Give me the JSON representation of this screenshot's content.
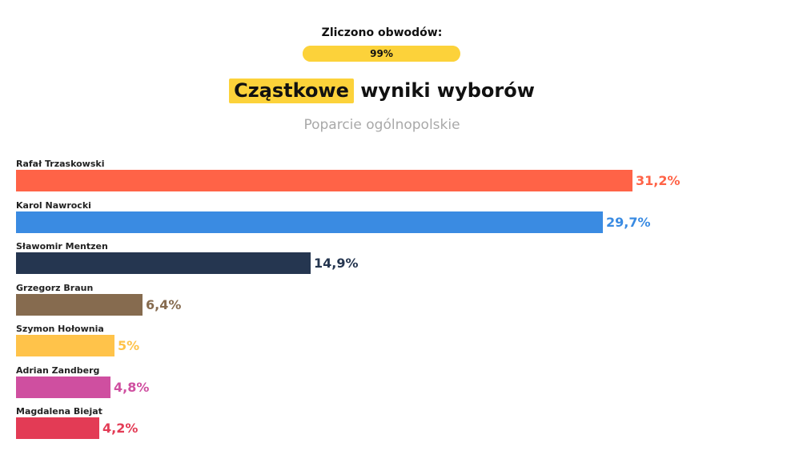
{
  "header": {
    "counted_label": "Zliczono obwodów:",
    "counted_progress_text": "99%",
    "counted_progress_fraction": 0.99,
    "progress_color": "#fcd23a"
  },
  "chart_data": {
    "type": "bar",
    "orientation": "horizontal",
    "title_highlight": "Cząstkowe",
    "title_rest": "wyniki wyborów",
    "subtitle": "Poparcie ogólnopolskie",
    "categories": [
      "Rafał Trzaskowski",
      "Karol Nawrocki",
      "Sławomir Mentzen",
      "Grzegorz Braun",
      "Szymon Hołownia",
      "Adrian Zandberg",
      "Magdalena Biejat"
    ],
    "values": [
      31.2,
      29.7,
      14.9,
      6.4,
      5,
      4.8,
      4.2
    ],
    "value_labels": [
      "31,2%",
      "29,7%",
      "14,9%",
      "6,4%",
      "5%",
      "4,8%",
      "4,2%"
    ],
    "colors": [
      "#ff6347",
      "#3a8be2",
      "#253650",
      "#866b4f",
      "#ffc34a",
      "#cf4fa0",
      "#e33b55"
    ],
    "unit": "%",
    "grid": false,
    "legend": "none",
    "highlight_color": "#fcd23a"
  }
}
